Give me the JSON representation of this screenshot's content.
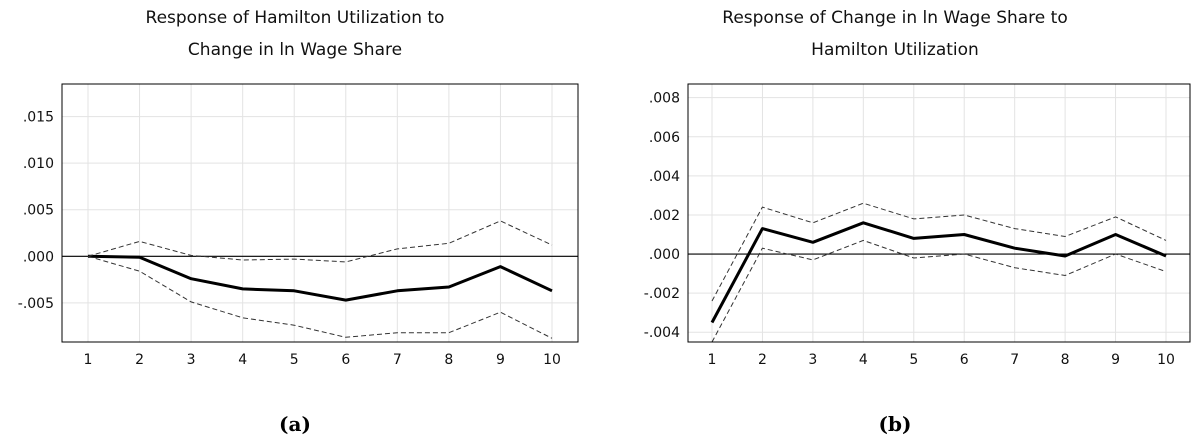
{
  "chart_data": [
    {
      "type": "line",
      "title_lines": [
        "Response of Hamilton Utilization to",
        "Change in ln Wage Share"
      ],
      "panel_label": "(a)",
      "x": [
        1,
        2,
        3,
        4,
        5,
        6,
        7,
        8,
        9,
        10
      ],
      "xticks": [
        "1",
        "2",
        "3",
        "4",
        "5",
        "6",
        "7",
        "8",
        "9",
        "10"
      ],
      "ylim": [
        -0.0092,
        0.0185
      ],
      "yticks": [
        -0.005,
        0.0,
        0.005,
        0.01,
        0.015
      ],
      "ytick_labels": [
        "-.005",
        ".000",
        ".005",
        ".010",
        ".015"
      ],
      "grid": true,
      "zero_line": true,
      "series": [
        {
          "role": "response",
          "style": "solid-thick",
          "values": [
            0.0,
            -0.0001,
            -0.0024,
            -0.0035,
            -0.0037,
            -0.0047,
            -0.0037,
            -0.0033,
            -0.0011,
            -0.0037
          ]
        },
        {
          "role": "upper-band",
          "style": "dashed",
          "values": [
            0.0,
            0.0016,
            0.0001,
            -0.0004,
            -0.0003,
            -0.0006,
            0.0008,
            0.0014,
            0.0038,
            0.0012
          ]
        },
        {
          "role": "lower-band",
          "style": "dashed",
          "values": [
            0.0,
            -0.0016,
            -0.0049,
            -0.0066,
            -0.0074,
            -0.0087,
            -0.0082,
            -0.0082,
            -0.006,
            -0.0088
          ]
        }
      ]
    },
    {
      "type": "line",
      "title_lines": [
        "Response of Change in ln Wage Share to",
        "Hamilton Utilization"
      ],
      "panel_label": "(b)",
      "x": [
        1,
        2,
        3,
        4,
        5,
        6,
        7,
        8,
        9,
        10
      ],
      "xticks": [
        "1",
        "2",
        "3",
        "4",
        "5",
        "6",
        "7",
        "8",
        "9",
        "10"
      ],
      "ylim": [
        -0.0045,
        0.0087
      ],
      "yticks": [
        -0.004,
        -0.002,
        0.0,
        0.002,
        0.004,
        0.006,
        0.008
      ],
      "ytick_labels": [
        "-.004",
        "-.002",
        ".000",
        ".002",
        ".004",
        ".006",
        ".008"
      ],
      "grid": true,
      "zero_line": true,
      "series": [
        {
          "role": "response",
          "style": "solid-thick",
          "values": [
            -0.0035,
            0.0013,
            0.0006,
            0.0016,
            0.0008,
            0.001,
            0.0003,
            -0.0001,
            0.001,
            -0.0001
          ]
        },
        {
          "role": "upper-band",
          "style": "dashed",
          "values": [
            -0.0024,
            0.0024,
            0.0016,
            0.0026,
            0.0018,
            0.002,
            0.0013,
            0.0009,
            0.0019,
            0.0007
          ]
        },
        {
          "role": "lower-band",
          "style": "dashed",
          "values": [
            -0.0045,
            0.0003,
            -0.0003,
            0.0007,
            -0.0002,
            0.0,
            -0.0007,
            -0.0011,
            0.0,
            -0.0009
          ]
        }
      ]
    }
  ]
}
